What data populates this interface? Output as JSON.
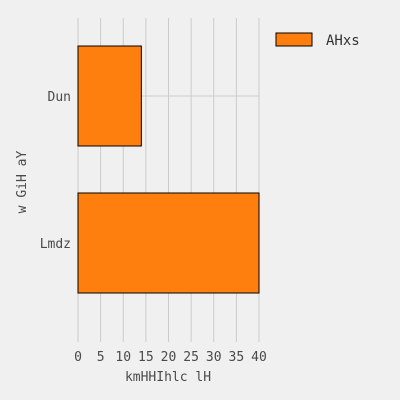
{
  "chart_data": {
    "type": "bar",
    "orientation": "horizontal",
    "categories": [
      "Dun",
      "Lmdz"
    ],
    "series": [
      {
        "name": "AHxs",
        "values": [
          14,
          40
        ]
      }
    ],
    "xlabel": "kmHHIhlc lH",
    "ylabel": "w GiH  aY",
    "xlim": [
      0,
      40
    ],
    "xticks": [
      "0",
      "5",
      "10",
      "15",
      "20",
      "25",
      "30",
      "35",
      "40"
    ],
    "grid": true,
    "legend_position": "top-right",
    "colors": {
      "bar": "#ff7f0e",
      "edge": "#000000",
      "grid": "#cbcbcb",
      "background": "#f0f0f0"
    }
  }
}
